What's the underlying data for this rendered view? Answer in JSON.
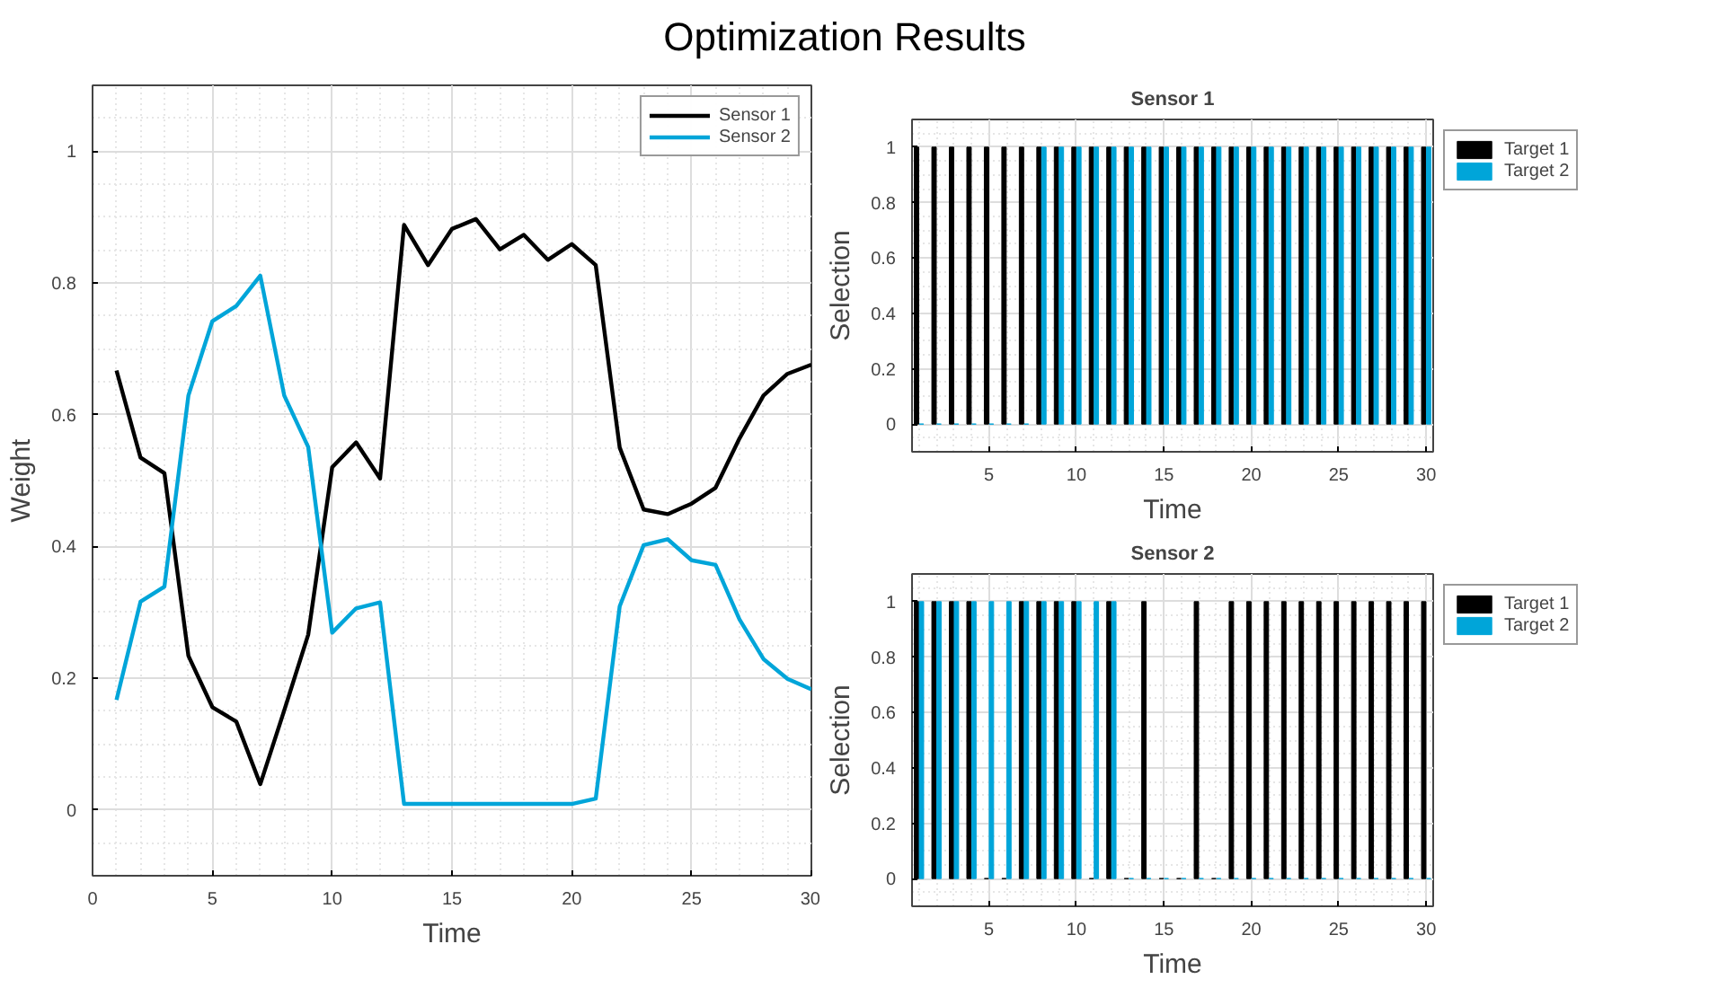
{
  "chart_data": [
    {
      "type": "line",
      "title": "Optimization Results",
      "xlabel": "Time",
      "ylabel": "Weight",
      "xlim": [
        0,
        30
      ],
      "ylim": [
        -0.1,
        1.1
      ],
      "xticks": [
        0,
        5,
        10,
        15,
        20,
        25,
        30
      ],
      "yticks": [
        0,
        0.2,
        0.4,
        0.6,
        0.8,
        1
      ],
      "grid": true,
      "legend": "top right",
      "line_style": "solid",
      "x": [
        1,
        2,
        3,
        4,
        5,
        6,
        7,
        8,
        9,
        10,
        11,
        12,
        13,
        14,
        15,
        16,
        17,
        18,
        19,
        20,
        21,
        22,
        23,
        24,
        25,
        26,
        27,
        28,
        29,
        30
      ],
      "series": [
        {
          "name": "Sensor 1",
          "color": "#000000",
          "values": [
            0.667,
            0.535,
            0.511,
            0.234,
            0.156,
            0.134,
            0.039,
            0.151,
            0.266,
            0.52,
            0.558,
            0.503,
            0.888,
            0.827,
            0.882,
            0.897,
            0.851,
            0.873,
            0.835,
            0.859,
            0.827,
            0.55,
            0.456,
            0.449,
            0.465,
            0.489,
            0.564,
            0.629,
            0.662,
            0.676
          ]
        },
        {
          "name": "Sensor 2",
          "color": "#00a5d9",
          "values": [
            0.167,
            0.316,
            0.339,
            0.629,
            0.742,
            0.765,
            0.811,
            0.629,
            0.551,
            0.269,
            0.306,
            0.315,
            0.009,
            0.009,
            0.009,
            0.009,
            0.009,
            0.009,
            0.009,
            0.009,
            0.017,
            0.309,
            0.402,
            0.411,
            0.379,
            0.372,
            0.289,
            0.229,
            0.199,
            0.183
          ]
        }
      ]
    },
    {
      "type": "bar",
      "title": "Sensor 1",
      "xlabel": "Time",
      "ylabel": "Selection",
      "xlim": [
        0.6,
        30.4
      ],
      "ylim": [
        -0.1,
        1.1
      ],
      "xticks": [
        5,
        10,
        15,
        20,
        25,
        30
      ],
      "yticks": [
        0,
        0.2,
        0.4,
        0.6,
        0.8,
        1
      ],
      "grid": true,
      "legend": "right",
      "x": [
        1,
        2,
        3,
        4,
        5,
        6,
        7,
        8,
        9,
        10,
        11,
        12,
        13,
        14,
        15,
        16,
        17,
        18,
        19,
        20,
        21,
        22,
        23,
        24,
        25,
        26,
        27,
        28,
        29,
        30
      ],
      "series": [
        {
          "name": "Target 1",
          "color": "#000000",
          "values": [
            1,
            1,
            1,
            1,
            1,
            1,
            1,
            1,
            1,
            1,
            1,
            1,
            1,
            1,
            1,
            1,
            1,
            1,
            1,
            1,
            1,
            1,
            1,
            1,
            1,
            1,
            1,
            1,
            1,
            1
          ]
        },
        {
          "name": "Target 2",
          "color": "#00a5d9",
          "values": [
            0,
            0,
            0,
            0,
            0,
            0,
            0,
            1,
            1,
            1,
            1,
            1,
            1,
            1,
            1,
            1,
            1,
            1,
            1,
            1,
            1,
            1,
            1,
            1,
            1,
            1,
            1,
            1,
            1,
            1
          ]
        }
      ]
    },
    {
      "type": "bar",
      "title": "Sensor 2",
      "xlabel": "Time",
      "ylabel": "Selection",
      "xlim": [
        0.6,
        30.4
      ],
      "ylim": [
        -0.1,
        1.1
      ],
      "xticks": [
        5,
        10,
        15,
        20,
        25,
        30
      ],
      "yticks": [
        0,
        0.2,
        0.4,
        0.6,
        0.8,
        1
      ],
      "grid": true,
      "legend": "right",
      "x": [
        1,
        2,
        3,
        4,
        5,
        6,
        7,
        8,
        9,
        10,
        11,
        12,
        13,
        14,
        15,
        16,
        17,
        18,
        19,
        20,
        21,
        22,
        23,
        24,
        25,
        26,
        27,
        28,
        29,
        30
      ],
      "series": [
        {
          "name": "Target 1",
          "color": "#000000",
          "values": [
            1,
            1,
            1,
            1,
            0,
            0,
            1,
            1,
            1,
            1,
            0,
            1,
            0,
            1,
            0,
            0,
            1,
            0,
            1,
            1,
            1,
            1,
            1,
            1,
            1,
            1,
            1,
            1,
            1,
            1
          ]
        },
        {
          "name": "Target 2",
          "color": "#00a5d9",
          "values": [
            1,
            1,
            1,
            1,
            1,
            1,
            1,
            1,
            1,
            1,
            1,
            1,
            0,
            0,
            0,
            0,
            0,
            0,
            0,
            0,
            0,
            0,
            0,
            0,
            0,
            0,
            0,
            0,
            0,
            0
          ]
        }
      ]
    }
  ]
}
